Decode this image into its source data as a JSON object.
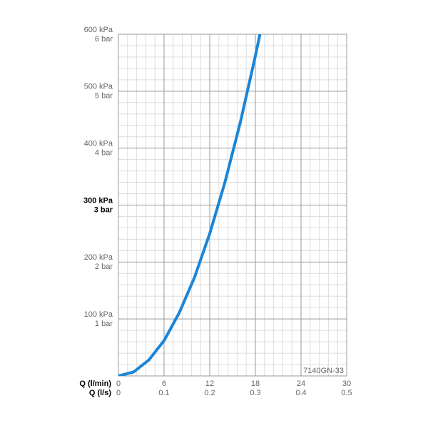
{
  "chart_data": {
    "type": "line",
    "x_label": "Q (l/min)",
    "x2_label": "Q (l/s)",
    "annotation": "7140GN-33",
    "x": [
      0,
      2,
      4,
      6,
      8,
      10,
      12,
      14,
      16,
      18,
      18.6
    ],
    "series": [
      {
        "color": "#1a85d8",
        "values": [
          0,
          7,
          28,
          62,
          111,
          173,
          250,
          340,
          444,
          562,
          600
        ]
      }
    ],
    "xlim": [
      0,
      30
    ],
    "xticks": [
      0,
      6,
      12,
      18,
      24,
      30
    ],
    "x2lim": [
      0,
      0.5
    ],
    "x2ticks": [
      0,
      0.1,
      0.2,
      0.3,
      0.4,
      0.5
    ],
    "ylim": [
      0,
      600
    ],
    "yticks": [
      {
        "value": 100,
        "label": "100 kPa"
      },
      {
        "value": 200,
        "label": "200 kPa"
      },
      {
        "value": 300,
        "label": "300 kPa"
      },
      {
        "value": 400,
        "label": "400 kPa"
      },
      {
        "value": 500,
        "label": "500 kPa"
      },
      {
        "value": 600,
        "label": "600 kPa"
      }
    ],
    "y2lim": [
      0,
      6
    ],
    "y2ticks": [
      {
        "value": 1,
        "label": "1 bar"
      },
      {
        "value": 2,
        "label": "2 bar"
      },
      {
        "value": 3,
        "label": "3 bar"
      },
      {
        "value": 4,
        "label": "4 bar"
      },
      {
        "value": 5,
        "label": "5 bar"
      },
      {
        "value": 6,
        "label": "6 bar"
      }
    ],
    "bold_ytick": 300,
    "grid": true,
    "minor_grid": true
  }
}
